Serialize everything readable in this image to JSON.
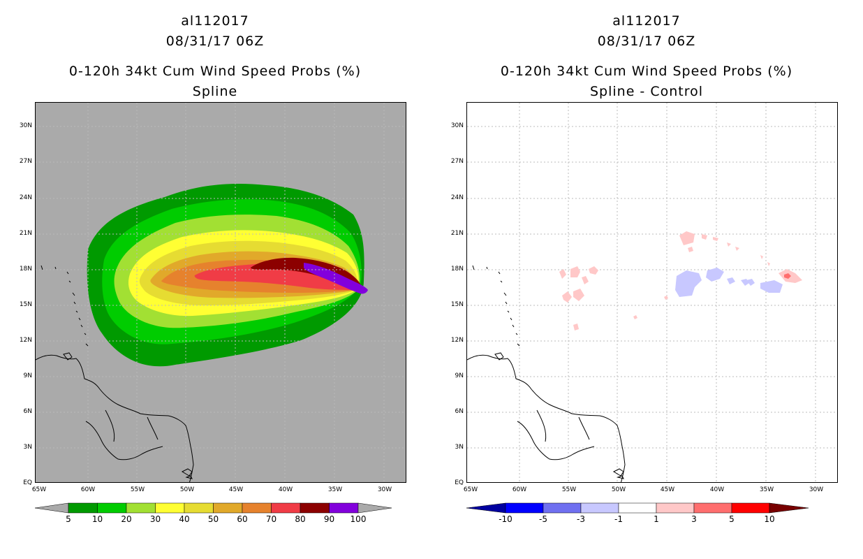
{
  "left": {
    "storm_id": "al112017",
    "datetime": "08/31/17 06Z",
    "product": "0-120h 34kt Cum Wind Speed Probs (%)",
    "variant": "Spline"
  },
  "right": {
    "storm_id": "al112017",
    "datetime": "08/31/17 06Z",
    "product": "0-120h 34kt Cum Wind Speed Probs (%)",
    "variant": "Spline - Control"
  },
  "axes": {
    "lat_labels": [
      "30N",
      "27N",
      "24N",
      "21N",
      "18N",
      "15N",
      "12N",
      "9N",
      "6N",
      "3N",
      "EQ"
    ],
    "lon_labels": [
      "65W",
      "60W",
      "55W",
      "50W",
      "45W",
      "40W",
      "35W",
      "30W"
    ]
  },
  "left_colorbar": {
    "labels": [
      "5",
      "10",
      "20",
      "30",
      "40",
      "50",
      "60",
      "70",
      "80",
      "90",
      "100"
    ],
    "colors": [
      "#009a00",
      "#00cc00",
      "#a2e033",
      "#ffff33",
      "#e6dc32",
      "#e1a92a",
      "#e6822d",
      "#f03c46",
      "#8c0000",
      "#8200dc"
    ]
  },
  "right_colorbar": {
    "labels": [
      "-10",
      "-5",
      "-3",
      "-1",
      "1",
      "3",
      "5",
      "10"
    ],
    "colors": [
      "#0000a0",
      "#0000ff",
      "#7070f0",
      "#c8c8ff",
      "#ffffff",
      "#ffc8c8",
      "#ff6e6e",
      "#ff0000",
      "#780000"
    ]
  },
  "colors": {
    "map_background": "#aaaaaa",
    "grid": "#bbbbbb",
    "coastline": "#000000"
  }
}
